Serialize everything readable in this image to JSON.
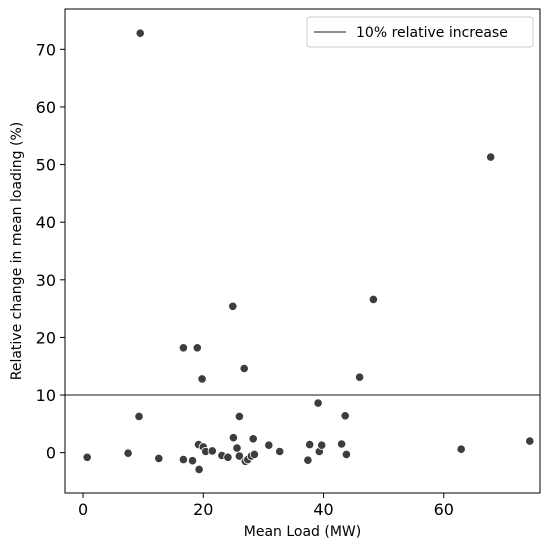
{
  "chart_data": {
    "type": "scatter",
    "xlabel": "Mean Load (MW)",
    "ylabel": "Relative change in mean loading (%)",
    "xlim": [
      -3,
      76
    ],
    "ylim": [
      -7,
      77
    ],
    "xticks": [
      0,
      20,
      40,
      60
    ],
    "yticks": [
      0,
      10,
      20,
      30,
      40,
      50,
      60,
      70
    ],
    "grid": false,
    "legend_position": "top-right",
    "reference_line": {
      "label": "10% relative increase",
      "y": 10,
      "color": "#8c8c8c"
    },
    "point_color": "#3d3d3d",
    "points": [
      {
        "x": 0.7,
        "y": -0.8
      },
      {
        "x": 7.5,
        "y": -0.1
      },
      {
        "x": 9.3,
        "y": 6.3
      },
      {
        "x": 9.5,
        "y": 72.8
      },
      {
        "x": 12.6,
        "y": -1.0
      },
      {
        "x": 16.7,
        "y": 18.2
      },
      {
        "x": 16.7,
        "y": -1.2
      },
      {
        "x": 18.2,
        "y": -1.4
      },
      {
        "x": 19.0,
        "y": 18.2
      },
      {
        "x": 19.2,
        "y": 1.4
      },
      {
        "x": 19.3,
        "y": -2.9
      },
      {
        "x": 19.8,
        "y": 12.8
      },
      {
        "x": 20.0,
        "y": 1.0
      },
      {
        "x": 20.4,
        "y": 0.2
      },
      {
        "x": 21.5,
        "y": 0.3
      },
      {
        "x": 23.1,
        "y": -0.5
      },
      {
        "x": 24.1,
        "y": -0.8
      },
      {
        "x": 24.9,
        "y": 25.4
      },
      {
        "x": 25.0,
        "y": 2.6
      },
      {
        "x": 25.6,
        "y": 0.8
      },
      {
        "x": 26.0,
        "y": 6.3
      },
      {
        "x": 26.0,
        "y": -0.6
      },
      {
        "x": 26.8,
        "y": 14.6
      },
      {
        "x": 27.0,
        "y": -1.5
      },
      {
        "x": 27.4,
        "y": -1.2
      },
      {
        "x": 28.0,
        "y": -0.6
      },
      {
        "x": 28.3,
        "y": 2.4
      },
      {
        "x": 28.5,
        "y": -0.3
      },
      {
        "x": 30.9,
        "y": 1.3
      },
      {
        "x": 32.7,
        "y": 0.2
      },
      {
        "x": 37.4,
        "y": -1.3
      },
      {
        "x": 37.7,
        "y": 1.4
      },
      {
        "x": 39.1,
        "y": 8.6
      },
      {
        "x": 39.3,
        "y": 0.2
      },
      {
        "x": 39.7,
        "y": 1.3
      },
      {
        "x": 43.0,
        "y": 1.5
      },
      {
        "x": 43.6,
        "y": 6.4
      },
      {
        "x": 43.8,
        "y": -0.3
      },
      {
        "x": 46.0,
        "y": 13.1
      },
      {
        "x": 48.3,
        "y": 26.6
      },
      {
        "x": 62.9,
        "y": 0.6
      },
      {
        "x": 67.8,
        "y": 51.3
      },
      {
        "x": 74.3,
        "y": 2.0
      }
    ]
  }
}
